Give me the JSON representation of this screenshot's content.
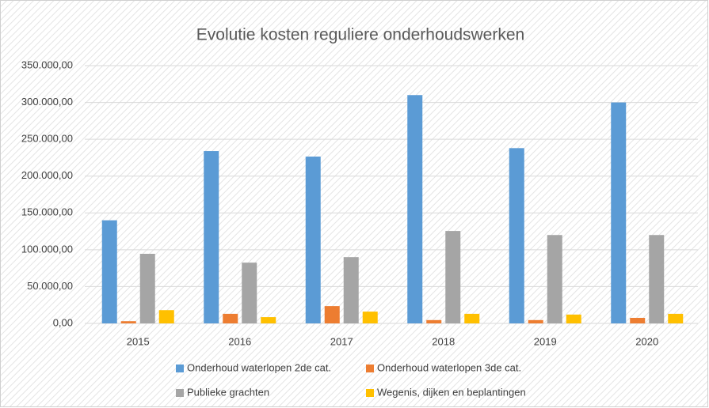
{
  "chart_data": {
    "type": "bar",
    "title": "Evolutie kosten reguliere onderhoudswerken",
    "categories": [
      "2015",
      "2016",
      "2017",
      "2018",
      "2019",
      "2020"
    ],
    "series": [
      {
        "name": "Onderhoud waterlopen 2de cat.",
        "color": "#5b9bd5",
        "values": [
          140000,
          234000,
          226500,
          310000,
          238000,
          300000
        ]
      },
      {
        "name": "Onderhoud waterlopen 3de cat.",
        "color": "#ed7d31",
        "values": [
          3000,
          13000,
          23500,
          4500,
          4500,
          7500
        ]
      },
      {
        "name": "Publieke grachten",
        "color": "#a5a5a5",
        "values": [
          94500,
          82500,
          90000,
          125500,
          120000,
          120000
        ]
      },
      {
        "name": "Wegenis, dijken en beplantingen",
        "color": "#ffc000",
        "values": [
          18000,
          8500,
          16000,
          13000,
          12000,
          13000
        ]
      }
    ],
    "ylim": [
      0,
      350000
    ],
    "yticks": [
      {
        "value": 0,
        "label": "0,00"
      },
      {
        "value": 50000,
        "label": "50.000,00"
      },
      {
        "value": 100000,
        "label": "100.000,00"
      },
      {
        "value": 150000,
        "label": "150.000,00"
      },
      {
        "value": 200000,
        "label": "200.000,00"
      },
      {
        "value": 250000,
        "label": "250.000,00"
      },
      {
        "value": 300000,
        "label": "300.000,00"
      },
      {
        "value": 350000,
        "label": "350.000,00"
      }
    ],
    "grid": true,
    "legend": "bottom"
  }
}
